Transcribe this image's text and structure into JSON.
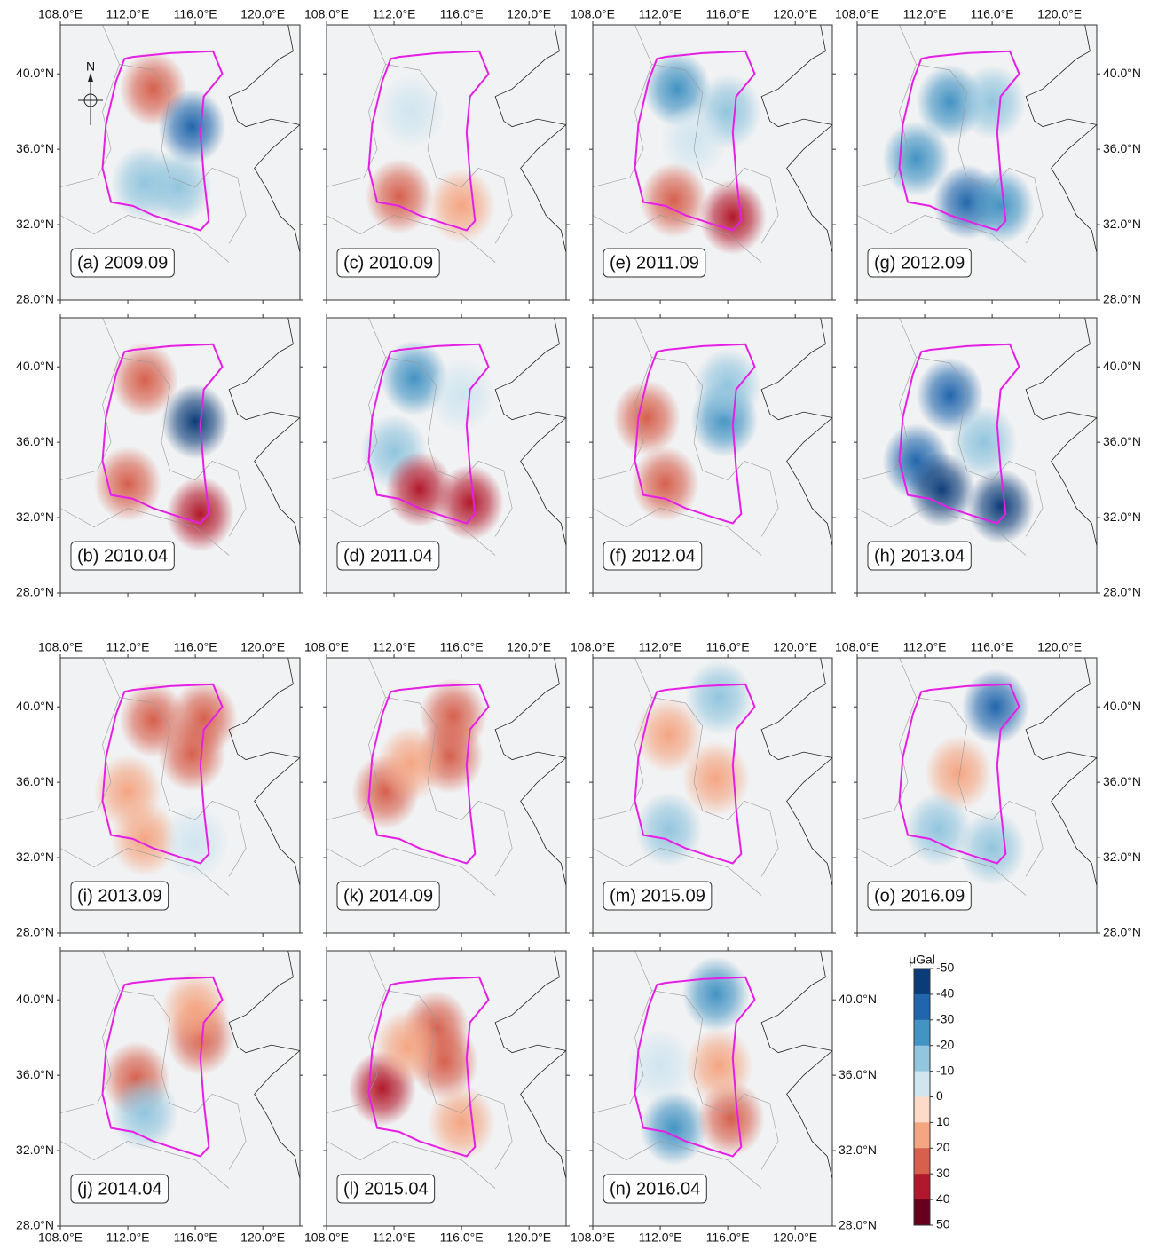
{
  "lonlim": [
    108,
    122.2
  ],
  "latlim": [
    28,
    42.6
  ],
  "x_ticks": [
    {
      "value": 108,
      "label": "108.0°E"
    },
    {
      "value": 112,
      "label": "112.0°E"
    },
    {
      "value": 116,
      "label": "116.0°E"
    },
    {
      "value": 120,
      "label": "120.0°E"
    }
  ],
  "y_ticks": [
    {
      "value": 28,
      "label": "28.0°N"
    },
    {
      "value": 32,
      "label": "32.0°N"
    },
    {
      "value": 36,
      "label": "36.0°N"
    },
    {
      "value": 40,
      "label": "40.0°N"
    }
  ],
  "panels": [
    {
      "label": "(a) 2009.09",
      "blobs": [
        {
          "lon": 113.5,
          "lat": 39.2,
          "value": 25
        },
        {
          "lon": 115.8,
          "lat": 37.2,
          "value": -35
        },
        {
          "lon": 113,
          "lat": 34.2,
          "value": -12
        },
        {
          "lon": 115,
          "lat": 34,
          "value": -12
        }
      ]
    },
    {
      "label": "(c) 2010.09",
      "blobs": [
        {
          "lon": 112.3,
          "lat": 33.5,
          "value": 22
        },
        {
          "lon": 116,
          "lat": 33,
          "value": 18
        },
        {
          "lon": 113,
          "lat": 38,
          "value": -5
        }
      ]
    },
    {
      "label": "(e) 2011.09",
      "blobs": [
        {
          "lon": 113,
          "lat": 39.2,
          "value": -25
        },
        {
          "lon": 116,
          "lat": 38,
          "value": -15
        },
        {
          "lon": 114,
          "lat": 36.5,
          "value": -10
        },
        {
          "lon": 112.8,
          "lat": 33.3,
          "value": 25
        },
        {
          "lon": 116.3,
          "lat": 32.4,
          "value": 30
        }
      ]
    },
    {
      "label": "(g) 2012.09",
      "blobs": [
        {
          "lon": 113.5,
          "lat": 38.5,
          "value": -30
        },
        {
          "lon": 111.5,
          "lat": 35.5,
          "value": -30
        },
        {
          "lon": 114.5,
          "lat": 33.2,
          "value": -40
        },
        {
          "lon": 116.5,
          "lat": 33,
          "value": -30
        },
        {
          "lon": 116,
          "lat": 38.5,
          "value": -15
        }
      ]
    },
    {
      "label": "(b) 2010.04",
      "blobs": [
        {
          "lon": 113,
          "lat": 39.3,
          "value": 25
        },
        {
          "lon": 116,
          "lat": 37.1,
          "value": -45
        },
        {
          "lon": 112,
          "lat": 33.8,
          "value": 28
        },
        {
          "lon": 116.3,
          "lat": 32.2,
          "value": 38
        }
      ]
    },
    {
      "label": "(d) 2011.04",
      "blobs": [
        {
          "lon": 113.2,
          "lat": 39.4,
          "value": -25
        },
        {
          "lon": 112,
          "lat": 35.5,
          "value": -15
        },
        {
          "lon": 116,
          "lat": 38.5,
          "value": -10
        },
        {
          "lon": 113.5,
          "lat": 33.5,
          "value": 35
        },
        {
          "lon": 116.5,
          "lat": 32.8,
          "value": 32
        }
      ]
    },
    {
      "label": "(f) 2012.04",
      "blobs": [
        {
          "lon": 111.2,
          "lat": 37.3,
          "value": 25
        },
        {
          "lon": 112.3,
          "lat": 33.8,
          "value": 28
        },
        {
          "lon": 115.8,
          "lat": 37.2,
          "value": -30
        },
        {
          "lon": 116,
          "lat": 39,
          "value": -15
        }
      ]
    },
    {
      "label": "(h) 2013.04",
      "blobs": [
        {
          "lon": 113.5,
          "lat": 38.5,
          "value": -35
        },
        {
          "lon": 111.5,
          "lat": 35,
          "value": -35
        },
        {
          "lon": 113,
          "lat": 33.5,
          "value": -45
        },
        {
          "lon": 116.5,
          "lat": 32.6,
          "value": -45
        },
        {
          "lon": 115.5,
          "lat": 36,
          "value": -15
        }
      ]
    },
    {
      "label": "(i) 2013.09",
      "blobs": [
        {
          "lon": 113.5,
          "lat": 39.3,
          "value": 22
        },
        {
          "lon": 116.5,
          "lat": 39.4,
          "value": 25
        },
        {
          "lon": 115.8,
          "lat": 37.5,
          "value": 28
        },
        {
          "lon": 112,
          "lat": 35.5,
          "value": 12
        },
        {
          "lon": 113,
          "lat": 33,
          "value": 15
        },
        {
          "lon": 116,
          "lat": 32.8,
          "value": -10
        }
      ]
    },
    {
      "label": "(k) 2014.09",
      "blobs": [
        {
          "lon": 115.5,
          "lat": 39.5,
          "value": 20
        },
        {
          "lon": 115.3,
          "lat": 37.4,
          "value": 22
        },
        {
          "lon": 111.5,
          "lat": 35.5,
          "value": 20
        },
        {
          "lon": 113,
          "lat": 37,
          "value": 12
        }
      ]
    },
    {
      "label": "(m) 2015.09",
      "blobs": [
        {
          "lon": 112.5,
          "lat": 38.5,
          "value": 15
        },
        {
          "lon": 115.3,
          "lat": 36.2,
          "value": 18
        },
        {
          "lon": 112.5,
          "lat": 33.5,
          "value": -15
        },
        {
          "lon": 115.5,
          "lat": 40.5,
          "value": -12
        }
      ]
    },
    {
      "label": "(o) 2016.09",
      "blobs": [
        {
          "lon": 116.2,
          "lat": 40,
          "value": -40
        },
        {
          "lon": 114,
          "lat": 36.5,
          "value": 18
        },
        {
          "lon": 112.8,
          "lat": 33.5,
          "value": -12
        },
        {
          "lon": 116,
          "lat": 32.5,
          "value": -15
        }
      ]
    },
    {
      "label": "(j) 2014.04",
      "blobs": [
        {
          "lon": 116.3,
          "lat": 38,
          "value": 25
        },
        {
          "lon": 112.5,
          "lat": 35.8,
          "value": 20
        },
        {
          "lon": 113,
          "lat": 34,
          "value": -15
        },
        {
          "lon": 116,
          "lat": 39.5,
          "value": 15
        }
      ]
    },
    {
      "label": "(l) 2015.04",
      "blobs": [
        {
          "lon": 111.3,
          "lat": 35.3,
          "value": 35
        },
        {
          "lon": 115,
          "lat": 36.7,
          "value": 28
        },
        {
          "lon": 114.5,
          "lat": 38.5,
          "value": 20
        },
        {
          "lon": 116,
          "lat": 33.5,
          "value": 15
        },
        {
          "lon": 112.8,
          "lat": 37.5,
          "value": 15
        }
      ]
    },
    {
      "label": "(n) 2016.04",
      "blobs": [
        {
          "lon": 115.3,
          "lat": 40.3,
          "value": -30
        },
        {
          "lon": 112.8,
          "lat": 33.2,
          "value": -22
        },
        {
          "lon": 116.2,
          "lat": 33.7,
          "value": 22
        },
        {
          "lon": 115.5,
          "lat": 36.5,
          "value": 12
        },
        {
          "lon": 112,
          "lat": 36.5,
          "value": -10
        }
      ]
    }
  ],
  "colorbar": {
    "label": "μGal",
    "range": [
      -50,
      50
    ],
    "ticks": [
      -50,
      -40,
      -30,
      -20,
      -10,
      0,
      10,
      20,
      30,
      40,
      50
    ],
    "colors": [
      "#0c3c78",
      "#2166ac",
      "#4393c3",
      "#92c5de",
      "#d1e5f0",
      "#fddbc7",
      "#f4a582",
      "#d6604d",
      "#b2182b",
      "#67001f"
    ]
  }
}
